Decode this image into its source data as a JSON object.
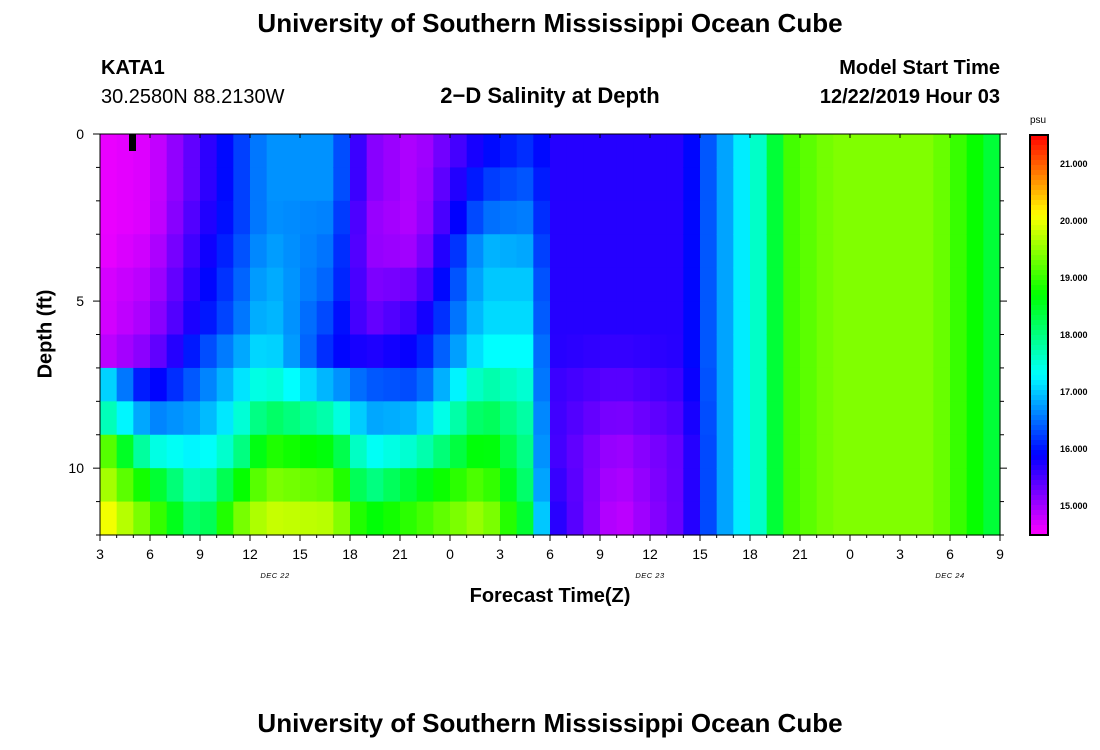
{
  "header": {
    "title_top": "University of Southern Mississippi Ocean Cube",
    "title_bottom": "University of Southern Mississippi Ocean Cube",
    "station": "KATA1",
    "coords": "30.2580N 88.2130W",
    "model_start_label": "Model Start Time",
    "model_start_value": "12/22/2019 Hour 03"
  },
  "chart_data": {
    "type": "heatmap",
    "title": "2−D Salinity at Depth",
    "xlabel": "Forecast Time(Z)",
    "ylabel": "Depth (ft)",
    "x_ticks": [
      "3",
      "6",
      "9",
      "12",
      "15",
      "18",
      "21",
      "0",
      "3",
      "6",
      "9",
      "12",
      "15",
      "18",
      "21",
      "0",
      "3",
      "6",
      "9"
    ],
    "day_labels": [
      "DEC  22",
      "DEC  23",
      "DEC  24"
    ],
    "y_ticks": [
      "0",
      "5",
      "10"
    ],
    "ylim": [
      0,
      12
    ],
    "colorbar": {
      "unit": "psu",
      "ticks": [
        "15.000",
        "16.000",
        "17.000",
        "18.000",
        "19.000",
        "20.000",
        "21.000"
      ],
      "range": [
        14.5,
        21.5
      ]
    },
    "forecast_hours": 54,
    "depth_levels": 12,
    "profiles": [
      {
        "hour": 0,
        "values": [
          14.6,
          14.6,
          14.6,
          14.6,
          14.7,
          14.7,
          14.8,
          17.3,
          17.9,
          19.5,
          19.8,
          20.2
        ]
      },
      {
        "hour": 3,
        "values": [
          14.7,
          14.7,
          14.7,
          14.8,
          14.9,
          15.0,
          15.2,
          15.8,
          16.6,
          17.5,
          18.6,
          19.2
        ]
      },
      {
        "hour": 6,
        "values": [
          15.5,
          15.5,
          15.6,
          15.7,
          15.8,
          15.9,
          16.2,
          16.5,
          16.8,
          17.2,
          17.5,
          17.9
        ]
      },
      {
        "hour": 8,
        "values": [
          16.1,
          16.1,
          16.1,
          16.2,
          16.3,
          16.4,
          16.7,
          17.0,
          17.3,
          17.7,
          18.5,
          19.2
        ]
      },
      {
        "hour": 10,
        "values": [
          16.7,
          16.7,
          16.7,
          16.8,
          16.9,
          17.0,
          17.2,
          17.6,
          18.2,
          18.9,
          19.4,
          19.8
        ]
      },
      {
        "hour": 14,
        "values": [
          16.7,
          16.7,
          16.6,
          16.5,
          16.4,
          16.2,
          16.0,
          16.8,
          17.7,
          18.6,
          19.2,
          19.7
        ]
      },
      {
        "hour": 16,
        "values": [
          15.2,
          15.2,
          15.1,
          15.1,
          15.2,
          15.3,
          15.7,
          16.4,
          16.8,
          17.3,
          17.9,
          18.6
        ]
      },
      {
        "hour": 19,
        "values": [
          14.9,
          14.9,
          14.9,
          15.0,
          15.3,
          15.6,
          15.9,
          16.3,
          16.9,
          17.6,
          18.5,
          19.0
        ]
      },
      {
        "hour": 23,
        "values": [
          15.9,
          16.2,
          16.5,
          16.9,
          17.0,
          17.1,
          17.3,
          17.8,
          18.3,
          18.8,
          19.2,
          19.6
        ]
      },
      {
        "hour": 26,
        "values": [
          16.2,
          16.4,
          16.6,
          16.8,
          17.0,
          17.1,
          17.3,
          17.5,
          17.7,
          17.8,
          17.9,
          18.2
        ]
      },
      {
        "hour": 27,
        "values": [
          15.7,
          15.7,
          15.7,
          15.7,
          15.7,
          15.7,
          15.7,
          15.6,
          15.6,
          15.6,
          15.7,
          15.8
        ]
      },
      {
        "hour": 31,
        "values": [
          15.7,
          15.7,
          15.7,
          15.7,
          15.7,
          15.7,
          15.6,
          15.4,
          15.2,
          15.0,
          14.9,
          14.8
        ]
      },
      {
        "hour": 35,
        "values": [
          15.7,
          15.7,
          15.7,
          15.7,
          15.7,
          15.7,
          15.7,
          15.6,
          15.5,
          15.4,
          15.4,
          15.4
        ]
      },
      {
        "hour": 37,
        "values": [
          16.6,
          16.6,
          16.6,
          16.6,
          16.6,
          16.6,
          16.6,
          16.6,
          16.6,
          16.6,
          16.6,
          16.6
        ]
      },
      {
        "hour": 40,
        "values": [
          17.8,
          17.8,
          17.8,
          17.8,
          17.8,
          17.8,
          17.8,
          17.8,
          17.8,
          17.8,
          17.8,
          17.8
        ]
      },
      {
        "hour": 41,
        "values": [
          19.0,
          19.0,
          19.0,
          19.0,
          19.0,
          19.0,
          19.0,
          19.0,
          19.0,
          19.0,
          19.0,
          19.0
        ]
      },
      {
        "hour": 44,
        "values": [
          19.4,
          19.4,
          19.4,
          19.4,
          19.4,
          19.4,
          19.4,
          19.4,
          19.4,
          19.4,
          19.4,
          19.4
        ]
      },
      {
        "hour": 50,
        "values": [
          19.4,
          19.4,
          19.4,
          19.4,
          19.4,
          19.4,
          19.4,
          19.4,
          19.4,
          19.4,
          19.4,
          19.4
        ]
      },
      {
        "hour": 53,
        "values": [
          18.6,
          18.6,
          18.6,
          18.6,
          18.6,
          18.6,
          18.6,
          18.6,
          18.6,
          18.6,
          18.6,
          18.6
        ]
      },
      {
        "hour": 54,
        "values": [
          18.2,
          18.2,
          18.2,
          18.2,
          18.2,
          18.2,
          18.2,
          18.2,
          18.2,
          18.2,
          18.2,
          18.2
        ]
      }
    ]
  }
}
